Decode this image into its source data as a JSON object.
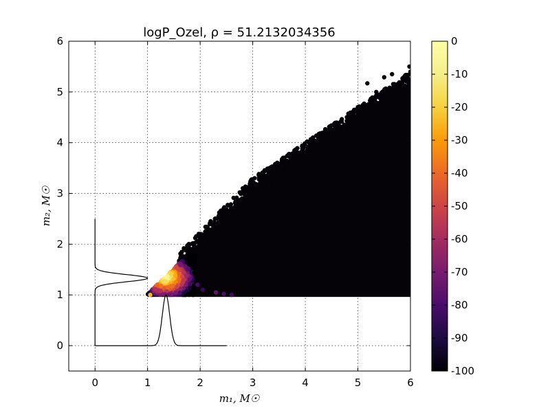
{
  "chart_data": {
    "type": "scatter",
    "title": "logP_Ozel, ρ = 51.2132034356",
    "xlabel": "m₁, M☉",
    "ylabel": "m₂, M☉",
    "xlim": [
      -0.5,
      6
    ],
    "ylim": [
      -0.5,
      6
    ],
    "x_ticks": [
      "0",
      "1",
      "2",
      "3",
      "4",
      "5",
      "6"
    ],
    "y_ticks": [
      "0",
      "1",
      "2",
      "3",
      "4",
      "5",
      "6"
    ],
    "grid": true,
    "colormap": "inferno",
    "colorbar": {
      "range": [
        -100,
        0
      ],
      "ticks": [
        "0",
        "-10",
        "-20",
        "-30",
        "-40",
        "-50",
        "-60",
        "-70",
        "-80",
        "-90",
        "-100"
      ]
    },
    "scatter_region": {
      "constraint": "m2 <= m1",
      "x_range": [
        1.0,
        6.0
      ],
      "y_range": [
        1.0,
        5.5
      ],
      "peak": {
        "m1": 1.35,
        "m2": 1.35,
        "value": 0
      },
      "background_value": -100,
      "outlier_points": [
        {
          "x": 5.18,
          "y": 5.17
        },
        {
          "x": 5.5,
          "y": 5.29
        },
        {
          "x": 5.65,
          "y": 5.35
        },
        {
          "x": 5.35,
          "y": 5.0
        },
        {
          "x": 5.75,
          "y": 5.05
        },
        {
          "x": 5.98,
          "y": 5.5
        },
        {
          "x": 5.0,
          "y": 4.7
        },
        {
          "x": 5.45,
          "y": 4.85
        },
        {
          "x": 5.85,
          "y": 4.95
        },
        {
          "x": 4.75,
          "y": 4.35
        },
        {
          "x": 4.6,
          "y": 4.3
        }
      ]
    },
    "marginal_curves": {
      "x_marginal": {
        "mean": 1.35,
        "sigma": 0.07,
        "peak_height": 1.0,
        "x_range": [
          0,
          2.5
        ]
      },
      "y_marginal": {
        "mean": 1.33,
        "sigma": 0.07,
        "peak_height": 1.0,
        "y_range": [
          0,
          2.5
        ]
      }
    }
  }
}
